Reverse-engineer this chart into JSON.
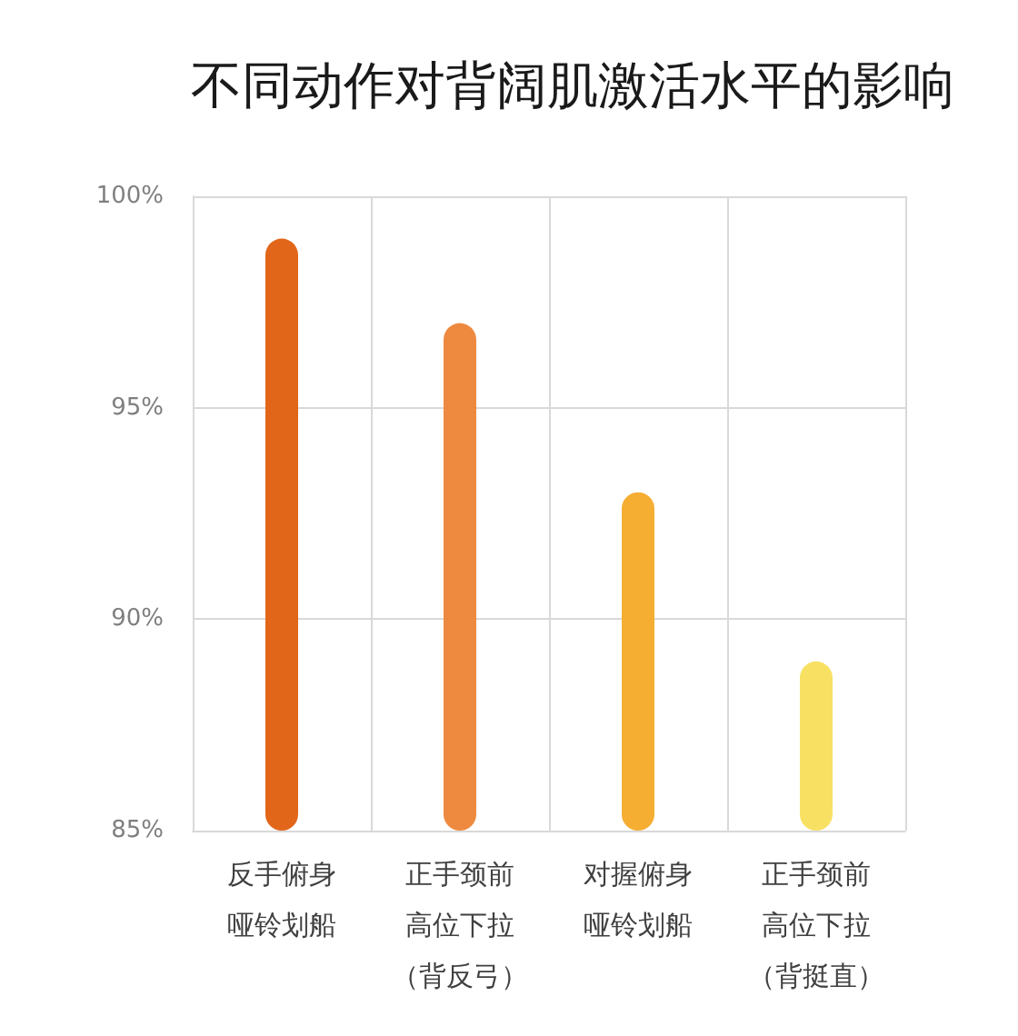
{
  "chart_data": {
    "type": "bar",
    "title": "不同动作对背阔肌激活水平的影响",
    "categories": [
      "反手俯身哑铃划船",
      "正手颈前高位下拉（背反弓）",
      "对握俯身哑铃划船",
      "正手颈前高位下拉（背挺直）"
    ],
    "values": [
      99,
      97,
      93,
      89
    ],
    "colors": [
      "#e2661a",
      "#ee8a40",
      "#f5ae32",
      "#f8e063"
    ],
    "ylim": [
      85,
      100
    ],
    "yticks": [
      {
        "value": 85,
        "label": "85%"
      },
      {
        "value": 90,
        "label": "90%"
      },
      {
        "value": 95,
        "label": "95%"
      },
      {
        "value": 100,
        "label": "100%"
      }
    ],
    "grid": true
  }
}
